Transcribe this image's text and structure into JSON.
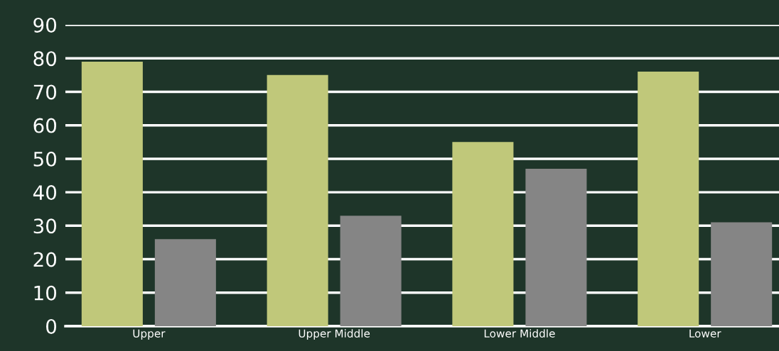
{
  "chart_data": {
    "type": "bar",
    "categories": [
      "Upper",
      "Upper Middle",
      "Lower Middle",
      "Lower"
    ],
    "series": [
      {
        "color": "#c0c87a",
        "values": [
          79,
          75,
          55,
          76
        ]
      },
      {
        "color": "#858585",
        "values": [
          26,
          33,
          47,
          31
        ]
      }
    ],
    "ylim": [
      0,
      90
    ],
    "yticks": [
      0,
      10,
      20,
      30,
      40,
      50,
      60,
      70,
      80,
      90
    ],
    "grid": "y",
    "legend": false
  }
}
